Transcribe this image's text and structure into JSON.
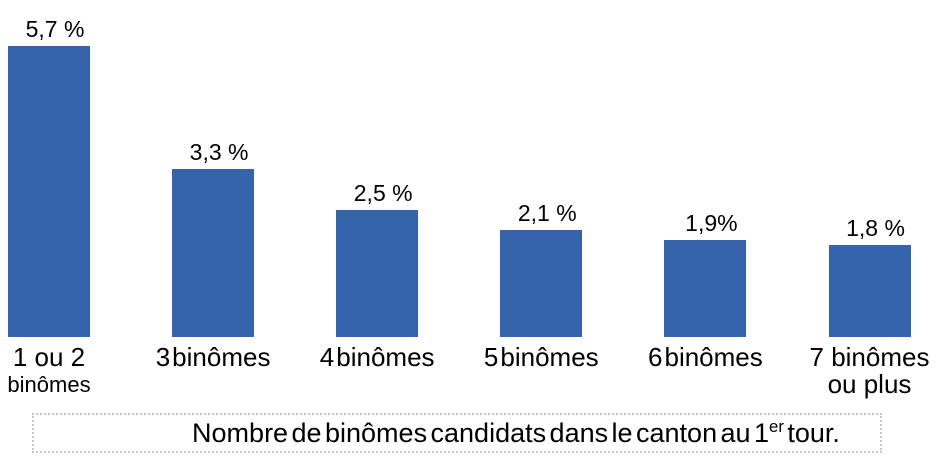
{
  "chart_data": {
    "type": "bar",
    "title": "",
    "xlabel": "",
    "ylabel": "",
    "categories": [
      "1 ou 2 binômes",
      "3 binômes",
      "4 binômes",
      "5 binômes",
      "6 binômes",
      "7 binômes ou plus"
    ],
    "category_display_lines": [
      [
        "1 ou 2",
        "binômes"
      ],
      [
        "3 binômes"
      ],
      [
        "4 binômes"
      ],
      [
        "5 binômes"
      ],
      [
        "6 binômes"
      ],
      [
        "7 binômes",
        "ou plus"
      ]
    ],
    "values": [
      5.7,
      3.3,
      2.5,
      2.1,
      1.9,
      1.8
    ],
    "value_labels": [
      "5,7 %",
      "3,3 %",
      "2,5 %",
      "2,1 %",
      "1,9%",
      "1,8 %"
    ],
    "unit": "%",
    "ylim": [
      0,
      6
    ],
    "grid": false,
    "legend": null,
    "bar_color": "#3564AD",
    "label_color": "#000000"
  },
  "caption": {
    "before_sup": "Nombre de binômes candidats dans le canton au 1",
    "sup": "er",
    "after_sup": " tour.",
    "box_border_color": "#c7c7c7"
  }
}
